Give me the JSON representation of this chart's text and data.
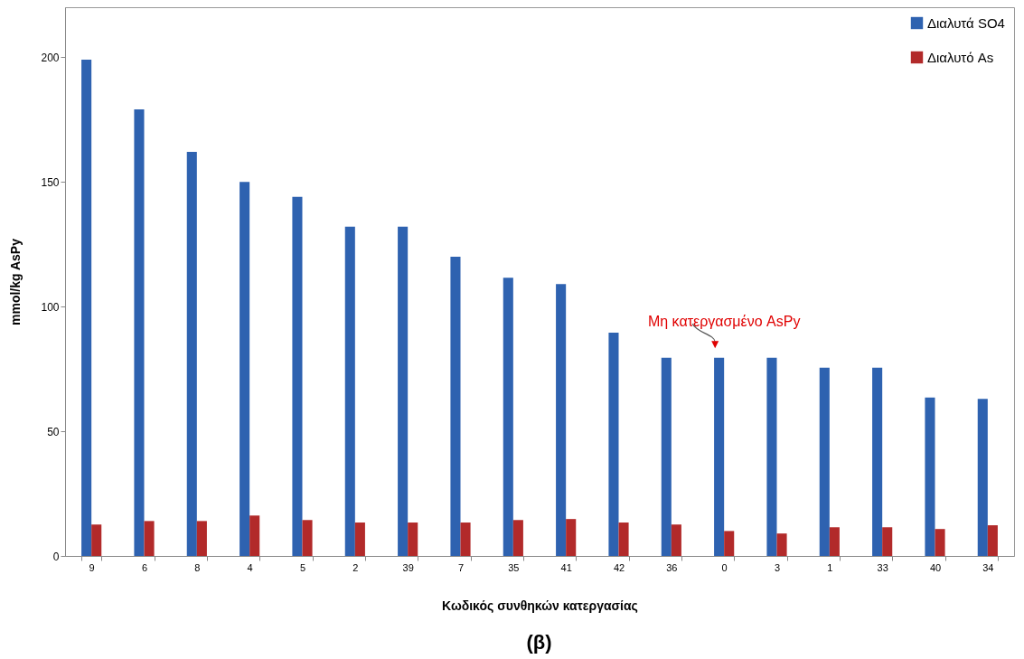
{
  "chart_data": {
    "type": "bar",
    "xlabel": "Κωδικός συνθηκών κατεργασίας",
    "ylabel": "mmol/kg  AsPy",
    "categories": [
      "9",
      "6",
      "8",
      "4",
      "5",
      "2",
      "39",
      "7",
      "35",
      "41",
      "42",
      "36",
      "0",
      "3",
      "1",
      "33",
      "40",
      "34"
    ],
    "series": [
      {
        "name": "Διαλυτά SO4",
        "color": "#2e62b0",
        "values": [
          199,
          179,
          162,
          150,
          144,
          132,
          132,
          120,
          111.5,
          109,
          89.5,
          79.5,
          79.5,
          79.5,
          75.5,
          75.5,
          63.5,
          63
        ]
      },
      {
        "name": "Διαλυτό As",
        "color": "#b22a2a",
        "values": [
          12.6,
          14,
          14,
          16.2,
          14.4,
          13.4,
          13.4,
          13.4,
          14.4,
          14.8,
          13.4,
          12.6,
          10,
          9,
          11.5,
          11.5,
          10.8,
          12.3
        ]
      }
    ],
    "ylim": [
      0,
      220
    ],
    "yticks": [
      0,
      50,
      100,
      150,
      200
    ],
    "grid": false,
    "legend": "top right",
    "annotations": [
      {
        "text": "Μη κατεργασμένο AsPy",
        "x": "0",
        "y": 80
      },
      "(β)"
    ]
  }
}
